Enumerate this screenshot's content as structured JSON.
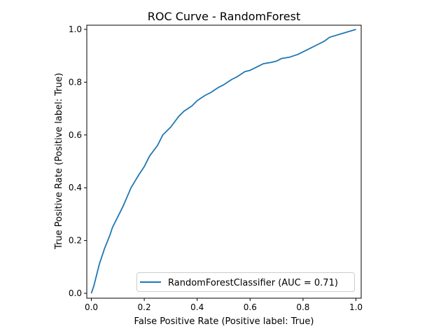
{
  "chart_data": {
    "type": "line",
    "title": "ROC Curve - RandomForest",
    "xlabel": "False Positive Rate (Positive label: True)",
    "ylabel": "True Positive Rate (Positive label: True)",
    "xlim": [
      0,
      1
    ],
    "ylim": [
      0,
      1
    ],
    "grid": false,
    "legend_position": "lower-right",
    "x_ticks": [
      0.0,
      0.2,
      0.4,
      0.6,
      0.8,
      1.0
    ],
    "x_tick_labels": [
      "0.0",
      "0.2",
      "0.4",
      "0.6",
      "0.8",
      "1.0"
    ],
    "y_ticks": [
      0.0,
      0.2,
      0.4,
      0.6,
      0.8,
      1.0
    ],
    "y_tick_labels": [
      "0.0",
      "0.2",
      "0.4",
      "0.6",
      "0.8",
      "1.0"
    ],
    "series": [
      {
        "name": "RandomForestClassifier (AUC = 0.71)",
        "color": "#1f77b4",
        "x": [
          0.0,
          0.01,
          0.02,
          0.03,
          0.05,
          0.07,
          0.08,
          0.1,
          0.12,
          0.15,
          0.18,
          0.2,
          0.22,
          0.25,
          0.27,
          0.3,
          0.33,
          0.35,
          0.38,
          0.4,
          0.43,
          0.45,
          0.48,
          0.5,
          0.53,
          0.55,
          0.58,
          0.6,
          0.62,
          0.65,
          0.68,
          0.7,
          0.72,
          0.75,
          0.78,
          0.8,
          0.83,
          0.85,
          0.88,
          0.9,
          0.95,
          1.0
        ],
        "y": [
          0.0,
          0.03,
          0.07,
          0.11,
          0.17,
          0.22,
          0.25,
          0.29,
          0.33,
          0.4,
          0.45,
          0.48,
          0.52,
          0.56,
          0.6,
          0.63,
          0.67,
          0.69,
          0.71,
          0.73,
          0.75,
          0.76,
          0.78,
          0.79,
          0.81,
          0.82,
          0.84,
          0.845,
          0.855,
          0.87,
          0.875,
          0.88,
          0.89,
          0.895,
          0.905,
          0.915,
          0.93,
          0.94,
          0.955,
          0.97,
          0.985,
          1.0
        ]
      }
    ]
  }
}
